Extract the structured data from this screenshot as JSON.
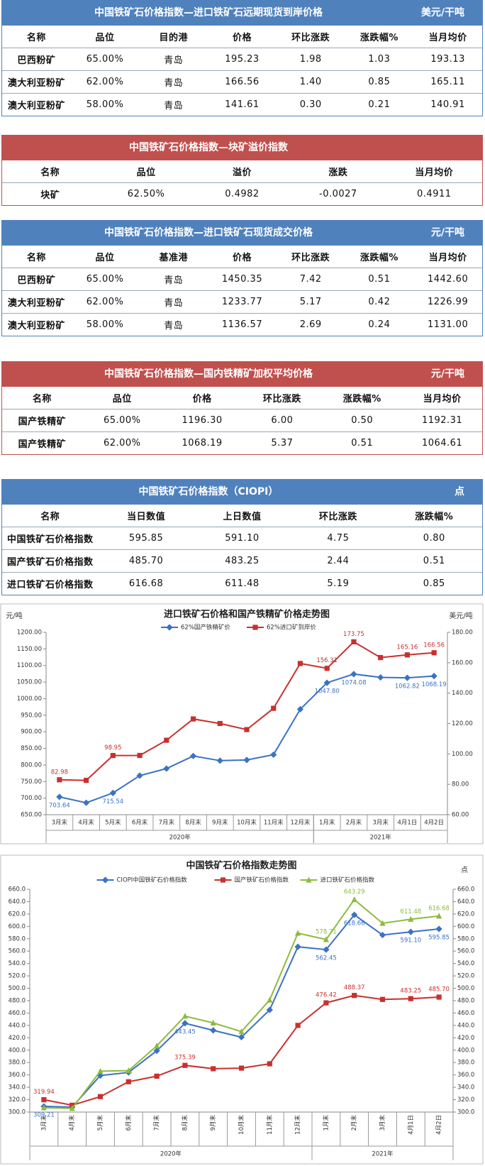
{
  "tables": [
    {
      "title": "中国铁矿石价格指数—进口铁矿石远期现货到岸价格",
      "unit": "美元/干吨",
      "color": "#4f81bd",
      "header": [
        "名称",
        "品位",
        "目的港",
        "价格",
        "环比涨跌",
        "涨跌幅%",
        "当月均价"
      ],
      "rows": [
        [
          "巴西粉矿",
          "65.00%",
          "青岛",
          "195.23",
          "1.98",
          "1.03",
          "193.13"
        ],
        [
          "澳大利亚粉矿",
          "62.00%",
          "青岛",
          "166.56",
          "1.40",
          "0.85",
          "165.11"
        ],
        [
          "澳大利亚粉矿",
          "58.00%",
          "青岛",
          "141.61",
          "0.30",
          "0.21",
          "140.91"
        ]
      ]
    },
    {
      "title": "中国铁矿石价格指数—块矿溢价指数",
      "color": "#c0504d",
      "header": [
        "名称",
        "品位",
        "溢价",
        "涨跌",
        "当月均价"
      ],
      "rows": [
        [
          "块矿",
          "62.50%",
          "0.4982",
          "-0.0027",
          "0.4911"
        ]
      ]
    },
    {
      "title": "中国铁矿石价格指数—进口铁矿石现货成交价格",
      "unit": "元/干吨",
      "color": "#4f81bd",
      "header": [
        "名称",
        "品位",
        "基准港",
        "价格",
        "环比涨跌",
        "涨跌幅%",
        "当月均价"
      ],
      "rows": [
        [
          "巴西粉矿",
          "65.00%",
          "青岛",
          "1450.35",
          "7.42",
          "0.51",
          "1442.60"
        ],
        [
          "澳大利亚粉矿",
          "62.00%",
          "青岛",
          "1233.77",
          "5.17",
          "0.42",
          "1226.99"
        ],
        [
          "澳大利亚粉矿",
          "58.00%",
          "青岛",
          "1136.57",
          "2.69",
          "0.24",
          "1131.00"
        ]
      ]
    },
    {
      "title": "中国铁矿石价格指数—国内铁精矿加权平均价格",
      "unit": "元/干吨",
      "color": "#c0504d",
      "header": [
        "名称",
        "品位",
        "价格",
        "环比涨跌",
        "涨跌幅%",
        "当月均价"
      ],
      "rows": [
        [
          "国产铁精矿",
          "65.00%",
          "1196.30",
          "6.00",
          "0.50",
          "1192.31"
        ],
        [
          "国产铁精矿",
          "62.00%",
          "1068.19",
          "5.37",
          "0.51",
          "1064.61"
        ]
      ]
    },
    {
      "title": "中国铁矿石价格指数（CIOPI）",
      "unit": "点",
      "color": "#4f81bd",
      "header": [
        "名称",
        "当日数值",
        "上日数值",
        "环比涨跌",
        "涨跌幅%"
      ],
      "rows": [
        [
          "中国铁矿石价格指数",
          "595.85",
          "591.10",
          "4.75",
          "0.80"
        ],
        [
          "国产铁矿石价格指数",
          "485.70",
          "483.25",
          "2.44",
          "0.51"
        ],
        [
          "进口铁矿石价格指数",
          "616.68",
          "611.48",
          "5.19",
          "0.85"
        ]
      ]
    }
  ],
  "chart_data": [
    {
      "type": "line",
      "title": "进口铁矿石价格和国产铁精矿价格走势图",
      "ylabel": "元/吨",
      "y2label": "美元/吨",
      "categories": [
        "3月末",
        "4月末",
        "5月末",
        "6月末",
        "7月末",
        "8月末",
        "9月末",
        "10月末",
        "11月末",
        "12月末",
        "1月末",
        "2月末",
        "3月末",
        "4月1日",
        "4月2日"
      ],
      "x_groups": [
        {
          "label": "2020年",
          "count": 10
        },
        {
          "label": "2021年",
          "count": 5
        }
      ],
      "ylim": [
        650,
        1200
      ],
      "yticks": [
        {
          "value": 650,
          "label": "650.00"
        },
        {
          "value": 700,
          "label": "700.00"
        },
        {
          "value": 750,
          "label": "750.00"
        },
        {
          "value": 800,
          "label": "800.00"
        },
        {
          "value": 850,
          "label": "850.00"
        },
        {
          "value": 900,
          "label": "900.00"
        },
        {
          "value": 950,
          "label": "950.00"
        },
        {
          "value": 1000,
          "label": "1000.00"
        },
        {
          "value": 1050,
          "label": "1050.00"
        },
        {
          "value": 1100,
          "label": "1100.00"
        },
        {
          "value": 1150,
          "label": "1150.00"
        },
        {
          "value": 1200,
          "label": "1200.00"
        }
      ],
      "y2lim": [
        60,
        180
      ],
      "y2ticks": [
        {
          "value": 60,
          "label": "60.00"
        },
        {
          "value": 80,
          "label": "80.00"
        },
        {
          "value": 100,
          "label": "100.00"
        },
        {
          "value": 120,
          "label": "120.00"
        },
        {
          "value": 140,
          "label": "140.00"
        },
        {
          "value": 160,
          "label": "160.00"
        },
        {
          "value": 180,
          "label": "180.00"
        }
      ],
      "rotate_labels": false,
      "series": [
        {
          "name": "62%国产铁精矿价",
          "color": "#3a72c4",
          "marker": "diamond",
          "values": [
            703.64,
            686,
            715.54,
            768,
            789,
            827,
            813,
            815,
            831,
            968,
            1047.8,
            1074.08,
            1064,
            1062.82,
            1068.19
          ],
          "value_labels": [
            "703.64",
            null,
            "715.54",
            null,
            null,
            null,
            null,
            null,
            null,
            null,
            "1047.80",
            "1074.08",
            null,
            "1062.82",
            "1068.19"
          ]
        },
        {
          "name": "62%进口矿到岸价",
          "color": "#c8302e",
          "marker": "square",
          "axis": "y2",
          "values": [
            82.98,
            82.6,
            98.95,
            99,
            109,
            123,
            120,
            116,
            130,
            159.5,
            156.31,
            173.75,
            163.4,
            165.16,
            166.56
          ],
          "value_labels": [
            "82.98",
            null,
            "98.95",
            null,
            null,
            null,
            null,
            null,
            null,
            null,
            "156.31",
            "173.75",
            null,
            "165.16",
            "166.56"
          ]
        }
      ]
    },
    {
      "type": "line",
      "title": "中国铁矿石价格指数走势图",
      "y2label": "点",
      "categories": [
        "3月末",
        "4月末",
        "5月末",
        "6月末",
        "7月末",
        "8月末",
        "9月末",
        "10月末",
        "11月末",
        "12月末",
        "1月末",
        "2月末",
        "3月末",
        "4月1日",
        "4月2日"
      ],
      "x_groups": [
        {
          "label": "2020年",
          "count": 10
        },
        {
          "label": "2021年",
          "count": 5
        }
      ],
      "ylim": [
        300,
        660
      ],
      "yticks": [
        {
          "value": 300,
          "label": "300.0"
        },
        {
          "value": 320,
          "label": "320.0"
        },
        {
          "value": 340,
          "label": "340.0"
        },
        {
          "value": 360,
          "label": "360.0"
        },
        {
          "value": 380,
          "label": "380.0"
        },
        {
          "value": 400,
          "label": "400.0"
        },
        {
          "value": 420,
          "label": "420.0"
        },
        {
          "value": 440,
          "label": "440.0"
        },
        {
          "value": 460,
          "label": "460.0"
        },
        {
          "value": 480,
          "label": "480.0"
        },
        {
          "value": 500,
          "label": "500.0"
        },
        {
          "value": 520,
          "label": "520.0"
        },
        {
          "value": 540,
          "label": "540.0"
        },
        {
          "value": 560,
          "label": "560.0"
        },
        {
          "value": 580,
          "label": "580.0"
        },
        {
          "value": 600,
          "label": "600.0"
        },
        {
          "value": 620,
          "label": "620.0"
        },
        {
          "value": 640,
          "label": "640.0"
        },
        {
          "value": 660,
          "label": "660.0"
        }
      ],
      "y2lim": [
        300,
        660
      ],
      "y2ticks": [
        {
          "value": 300,
          "label": "300.0"
        },
        {
          "value": 320,
          "label": "320.0"
        },
        {
          "value": 340,
          "label": "340.0"
        },
        {
          "value": 360,
          "label": "360.0"
        },
        {
          "value": 380,
          "label": "380.0"
        },
        {
          "value": 400,
          "label": "400.0"
        },
        {
          "value": 420,
          "label": "420.0"
        },
        {
          "value": 440,
          "label": "440.0"
        },
        {
          "value": 460,
          "label": "460.0"
        },
        {
          "value": 480,
          "label": "480.0"
        },
        {
          "value": 500,
          "label": "500.0"
        },
        {
          "value": 520,
          "label": "520.0"
        },
        {
          "value": 540,
          "label": "540.0"
        },
        {
          "value": 560,
          "label": "560.0"
        },
        {
          "value": 580,
          "label": "580.0"
        },
        {
          "value": 600,
          "label": "600.0"
        },
        {
          "value": 620,
          "label": "620.0"
        },
        {
          "value": 640,
          "label": "640.0"
        },
        {
          "value": 660,
          "label": "660.0"
        }
      ],
      "rotate_labels": true,
      "series": [
        {
          "name": "CIOPI中国铁矿石价格指数",
          "color": "#3a72c4",
          "marker": "diamond",
          "values": [
            309.21,
            308,
            359,
            364,
            399,
            443.45,
            432,
            421,
            465,
            567,
            562.45,
            618.66,
            586,
            591.1,
            595.85
          ],
          "value_labels": [
            "309.21",
            null,
            null,
            null,
            null,
            "443.45",
            null,
            null,
            null,
            null,
            "562.45",
            "618.66",
            null,
            "591.10",
            "595.85"
          ]
        },
        {
          "name": "国产铁矿石价格指数",
          "color": "#c8302e",
          "marker": "square",
          "values": [
            319.94,
            311,
            325,
            349,
            358,
            375.39,
            370,
            371,
            378,
            440,
            476.42,
            488.37,
            482,
            483.25,
            485.7
          ],
          "value_labels": [
            "319.94",
            null,
            null,
            null,
            null,
            "375.39",
            null,
            null,
            null,
            null,
            "476.42",
            "488.37",
            null,
            "483.25",
            "485.70"
          ]
        },
        {
          "name": "进口铁矿石价格指数",
          "color": "#8dbb3e",
          "marker": "triangle",
          "values": [
            307,
            306,
            366,
            367,
            407,
            455,
            444,
            430,
            481,
            589,
            578.71,
            643.29,
            605,
            611.48,
            616.68
          ],
          "value_labels": [
            null,
            null,
            null,
            null,
            null,
            null,
            null,
            null,
            null,
            null,
            "578.71",
            "643.29",
            null,
            "611.48",
            "616.68"
          ]
        }
      ]
    }
  ]
}
